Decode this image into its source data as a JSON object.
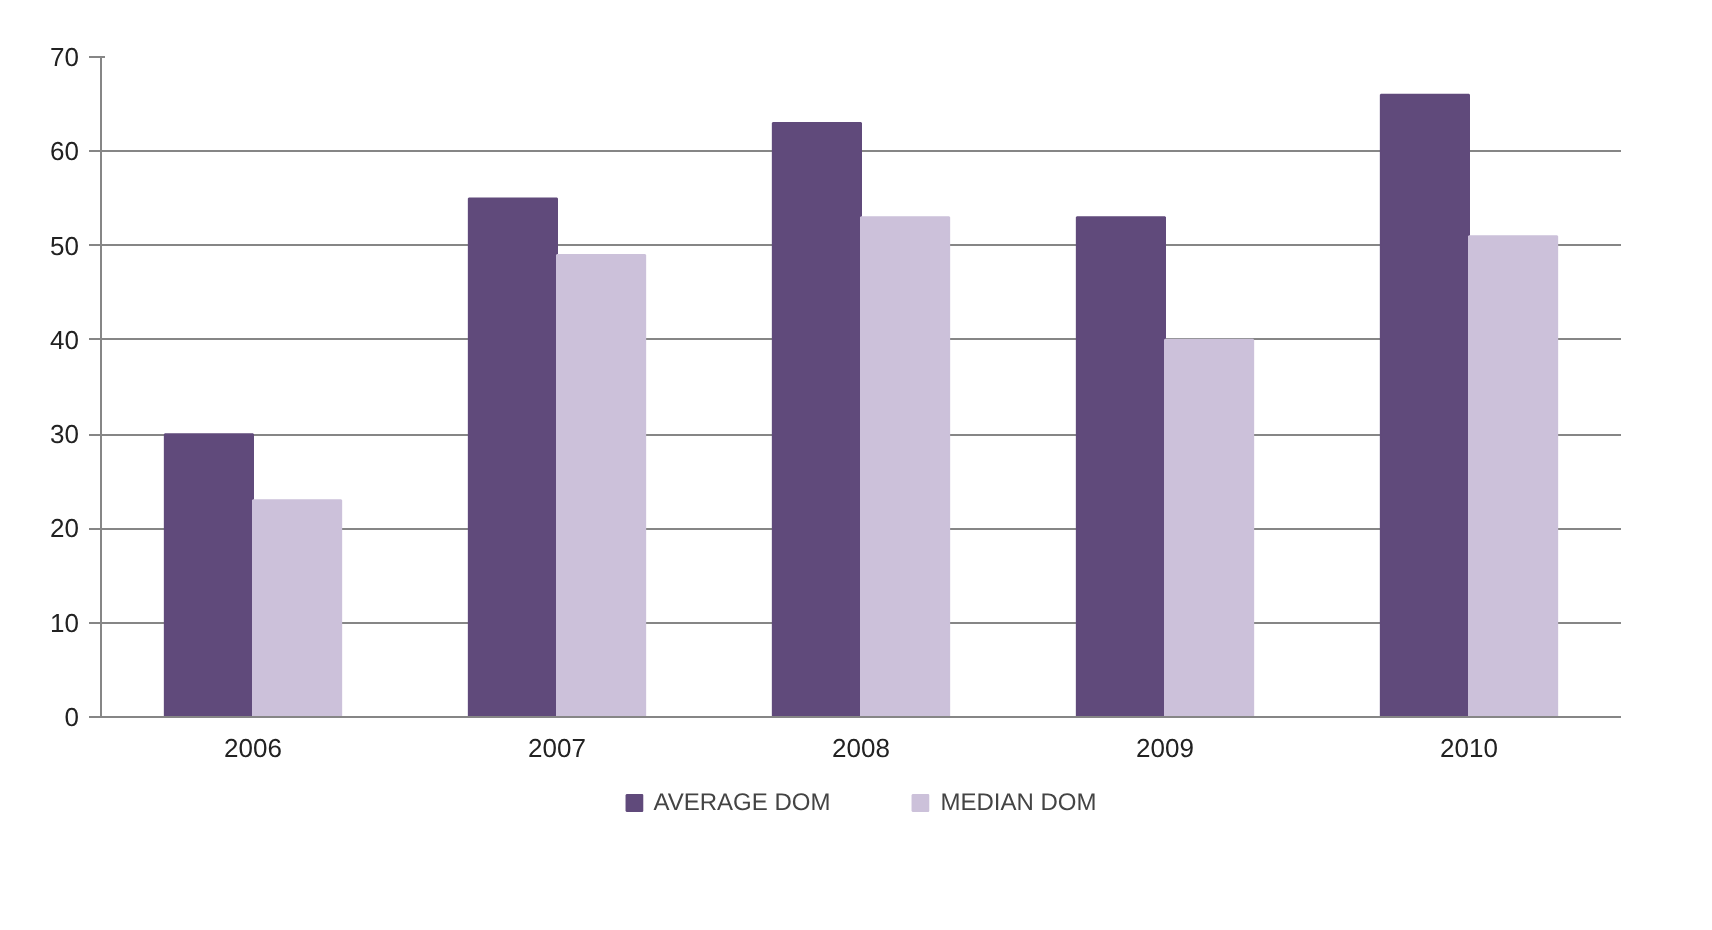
{
  "chart_data": {
    "type": "bar",
    "categories": [
      "2006",
      "2007",
      "2008",
      "2009",
      "2010"
    ],
    "series": [
      {
        "name": "AVERAGE DOM",
        "color": "#604a7b",
        "values": [
          30,
          55,
          63,
          53,
          66
        ]
      },
      {
        "name": "MEDIAN DOM",
        "color": "#ccc1da",
        "values": [
          23,
          49,
          53,
          40,
          51
        ]
      }
    ],
    "ylim": [
      0,
      70
    ],
    "yticks": [
      0,
      10,
      20,
      30,
      40,
      50,
      60,
      70
    ],
    "grid": "y",
    "legend": "bottom"
  }
}
